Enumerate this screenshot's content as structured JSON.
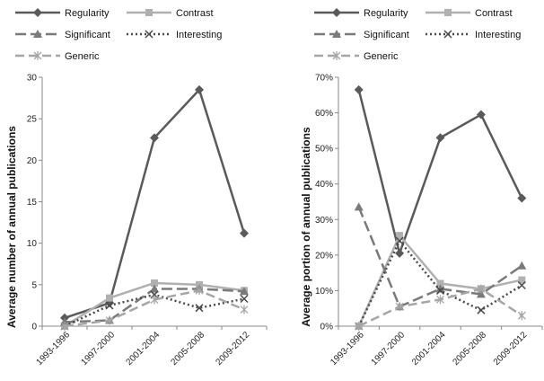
{
  "chart_data": [
    {
      "type": "line",
      "ylabel": "Average number of annual publications",
      "categories": [
        "1993-1996",
        "1997-2000",
        "2001-2004",
        "2005-2008",
        "2009-2012"
      ],
      "ylim": [
        0,
        30
      ],
      "yticks": [
        0,
        5,
        10,
        15,
        20,
        25,
        30
      ],
      "ytick_labels": [
        "0",
        "5",
        "10",
        "15",
        "20",
        "25",
        "30"
      ],
      "legend_position": "top",
      "grid": false,
      "series": [
        {
          "name": "Regularity",
          "values": [
            1,
            2.8,
            22.7,
            28.5,
            11.2
          ]
        },
        {
          "name": "Contrast",
          "values": [
            0,
            3.4,
            5.2,
            5,
            4.3
          ]
        },
        {
          "name": "Significant",
          "values": [
            0.5,
            0.7,
            4.5,
            4.5,
            4.2
          ]
        },
        {
          "name": "Interesting",
          "values": [
            0,
            2.5,
            3.8,
            2.2,
            3.3
          ]
        },
        {
          "name": "Generic",
          "values": [
            0,
            0.7,
            3.2,
            4.3,
            2
          ]
        }
      ]
    },
    {
      "type": "line",
      "ylabel": "Average portion of annual publications",
      "categories": [
        "1993-1996",
        "1997-2000",
        "2001-2004",
        "2005-2008",
        "2009-2012"
      ],
      "ylim": [
        0,
        70
      ],
      "yticks": [
        0,
        10,
        20,
        30,
        40,
        50,
        60,
        70
      ],
      "ytick_labels": [
        "0%",
        "10%",
        "20%",
        "30%",
        "40%",
        "50%",
        "60%",
        "70%"
      ],
      "legend_position": "top",
      "grid": false,
      "series": [
        {
          "name": "Regularity",
          "values": [
            66.5,
            20.5,
            53,
            59.5,
            36
          ]
        },
        {
          "name": "Contrast",
          "values": [
            0,
            25.5,
            12,
            10.5,
            13
          ]
        },
        {
          "name": "Significant",
          "values": [
            33.5,
            5.5,
            10.5,
            9,
            17
          ]
        },
        {
          "name": "Interesting",
          "values": [
            0,
            24,
            10,
            4.5,
            11.5
          ]
        },
        {
          "name": "Generic",
          "values": [
            0,
            5.5,
            7.5,
            10.5,
            3
          ]
        }
      ]
    }
  ],
  "styles": {
    "Regularity": {
      "color": "#5a5a5a",
      "marker": "diamond",
      "dash": ""
    },
    "Contrast": {
      "color": "#b0b0b0",
      "marker": "square",
      "dash": ""
    },
    "Significant": {
      "color": "#7a7a7a",
      "marker": "triangle",
      "dash": "12 5"
    },
    "Interesting": {
      "color": "#4a4a4a",
      "marker": "x",
      "dash": "2 3"
    },
    "Generic": {
      "color": "#a6a6a6",
      "marker": "star",
      "dash": "10 5"
    }
  }
}
